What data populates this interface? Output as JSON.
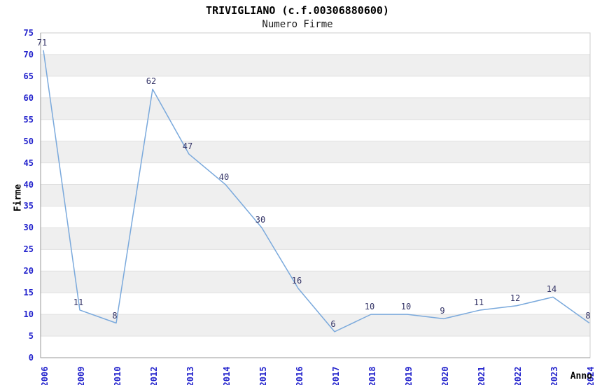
{
  "header": {
    "title": "TRIVIGLIANO (c.f.00306880600)",
    "subtitle": "Numero Firme"
  },
  "chart_data": {
    "type": "line",
    "title": "TRIVIGLIANO (c.f.00306880600)",
    "subtitle": "Numero Firme",
    "xlabel": "Anno",
    "ylabel": "Firme",
    "categories": [
      "2006",
      "2009",
      "2010",
      "2012",
      "2013",
      "2014",
      "2015",
      "2016",
      "2017",
      "2018",
      "2019",
      "2020",
      "2021",
      "2022",
      "2023",
      "2024"
    ],
    "values": [
      71,
      11,
      8,
      62,
      47,
      40,
      30,
      16,
      6,
      10,
      10,
      9,
      11,
      12,
      14,
      8
    ],
    "ylim": [
      0,
      75
    ],
    "ytick_step": 5,
    "grid": true,
    "banded_background": true,
    "legend": "none",
    "colors": {
      "line": "#7AA9DC",
      "tick_label": "#2222CC",
      "point_label": "#333366",
      "band": "#EFEFEF",
      "gridline": "#E0E0E0",
      "plot_border": "#CCCCCC",
      "axis": "#999999",
      "title": "#000000"
    }
  }
}
